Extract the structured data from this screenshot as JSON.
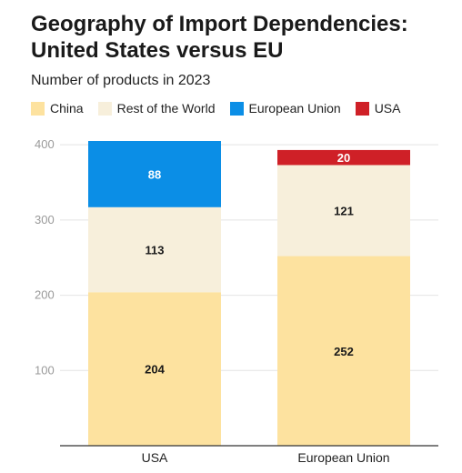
{
  "chart_data": {
    "type": "bar",
    "stacked": true,
    "title": "Geography of Import Dependencies: United States versus EU",
    "subtitle": "Number of products in 2023",
    "categories": [
      "USA",
      "European Union"
    ],
    "series": [
      {
        "name": "China",
        "color": "#fde29f",
        "label_color": "#1a1a1a",
        "values": [
          204,
          252
        ]
      },
      {
        "name": "Rest of the World",
        "color": "#f7efdb",
        "label_color": "#1a1a1a",
        "values": [
          113,
          121
        ]
      },
      {
        "name": "European Union",
        "color": "#0b8ee6",
        "label_color": "#ffffff",
        "values": [
          88,
          null
        ]
      },
      {
        "name": "USA",
        "color": "#cf2027",
        "label_color": "#ffffff",
        "values": [
          null,
          20
        ]
      }
    ],
    "yticks": [
      100,
      200,
      300,
      400
    ],
    "ylim": [
      0,
      405
    ],
    "grid": true,
    "legend_position": "top-left"
  }
}
